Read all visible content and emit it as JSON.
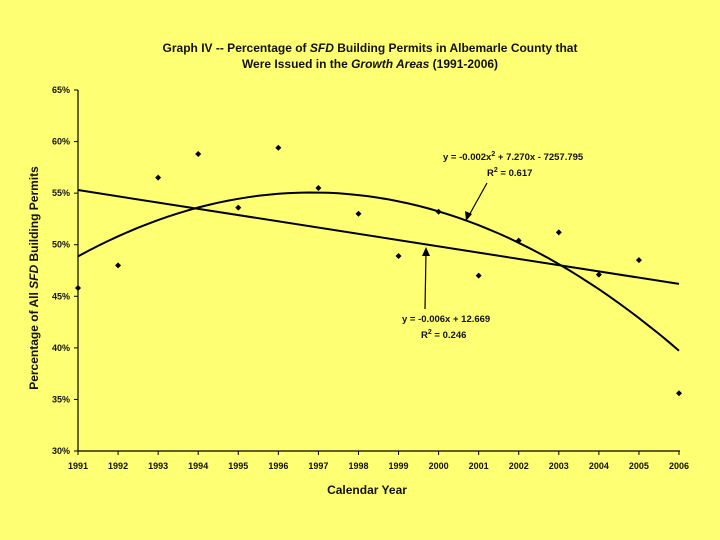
{
  "chart_data": {
    "type": "scatter",
    "title": {
      "line1_pre": "Graph IV -- Percentage of ",
      "line1_em": "SFD",
      "line1_post": " Building Permits in Albemarle County that",
      "line2_pre": "Were Issued in the ",
      "line2_em": "Growth Areas",
      "line2_post": "  (1991-2006)"
    },
    "xlabel": "Calendar Year",
    "ylabel": {
      "pre": "Percentage of All ",
      "em": "SFD",
      "post": " Building Permits"
    },
    "x_ticks": [
      "1991",
      "1992",
      "1993",
      "1994",
      "1995",
      "1996",
      "1997",
      "1998",
      "1999",
      "2000",
      "2001",
      "2002",
      "2003",
      "2004",
      "2005",
      "2006"
    ],
    "y_ticks": [
      "30%",
      "35%",
      "40%",
      "45%",
      "50%",
      "55%",
      "60%",
      "65%"
    ],
    "ylim": [
      30,
      65
    ],
    "xlim": [
      1991,
      2006
    ],
    "points": [
      {
        "x": 1991,
        "y": 45.8
      },
      {
        "x": 1992,
        "y": 48.0
      },
      {
        "x": 1993,
        "y": 56.5
      },
      {
        "x": 1994,
        "y": 58.8
      },
      {
        "x": 1995,
        "y": 53.6
      },
      {
        "x": 1996,
        "y": 59.4
      },
      {
        "x": 1997,
        "y": 55.5
      },
      {
        "x": 1998,
        "y": 53.0
      },
      {
        "x": 1999,
        "y": 48.9
      },
      {
        "x": 2000,
        "y": 53.2
      },
      {
        "x": 2001,
        "y": 47.0
      },
      {
        "x": 2002,
        "y": 50.4
      },
      {
        "x": 2003,
        "y": 51.2
      },
      {
        "x": 2004,
        "y": 47.1
      },
      {
        "x": 2005,
        "y": 48.5
      },
      {
        "x": 2006,
        "y": 35.6
      }
    ],
    "trendlines": [
      {
        "name": "linear",
        "start": {
          "x": 1991,
          "y": 55.3
        },
        "end": {
          "x": 2006,
          "y": 46.2
        }
      },
      {
        "name": "polynomial",
        "x": [
          1991,
          1994,
          1997,
          2000,
          2003,
          2006
        ],
        "y": [
          48.9,
          53.5,
          55.1,
          53.4,
          47.9,
          39.8
        ]
      }
    ],
    "annotations": {
      "poly": {
        "eq_pre": "y = -0.002x",
        "eq_sup": "2",
        "eq_post": " + 7.270x - 7257.795",
        "r2_pre": "R",
        "r2_sup": "2",
        "r2_post": " = 0.617"
      },
      "linear": {
        "eq": "y = -0.006x + 12.669",
        "r2_pre": "R",
        "r2_sup": "2",
        "r2_post": " = 0.246"
      }
    },
    "grid": false,
    "legend": "none"
  }
}
